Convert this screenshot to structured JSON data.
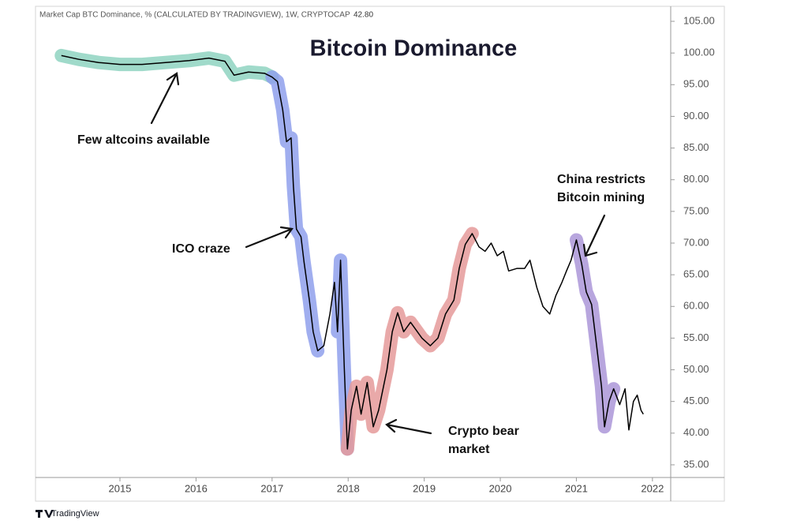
{
  "chart_data": {
    "type": "line",
    "header": "Market Cap BTC Dominance, % (CALCULATED BY TRADINGVIEW), 1W, CRYPTOCAP",
    "last_value": {
      "value": 42.8,
      "label": "42.80"
    },
    "title": "Bitcoin Dominance",
    "brand": "TradingView",
    "xlim": [
      2013.89,
      2022.24
    ],
    "xticks": [
      2015,
      2016,
      2017,
      2018,
      2019,
      2020,
      2021,
      2022
    ],
    "ylim": [
      33.0,
      107.37
    ],
    "yticks": [
      {
        "value": 35,
        "label": "35.00"
      },
      {
        "value": 40,
        "label": "40.00"
      },
      {
        "value": 45,
        "label": "45.00"
      },
      {
        "value": 50,
        "label": "50.00"
      },
      {
        "value": 55,
        "label": "55.00"
      },
      {
        "value": 60,
        "label": "60.00"
      },
      {
        "value": 65,
        "label": "65.00"
      },
      {
        "value": 70,
        "label": "70.00"
      },
      {
        "value": 75,
        "label": "75.00"
      },
      {
        "value": 80,
        "label": "80.00"
      },
      {
        "value": 85,
        "label": "85.00"
      },
      {
        "value": 90,
        "label": "90.00"
      },
      {
        "value": 95,
        "label": "95.00"
      },
      {
        "value": 100,
        "label": "100.00"
      },
      {
        "value": 105,
        "label": "105.00"
      }
    ],
    "x": [
      2014.23,
      2014.46,
      2014.72,
      2015.0,
      2015.29,
      2015.6,
      2015.91,
      2016.17,
      2016.38,
      2016.5,
      2016.69,
      2016.9,
      2017.0,
      2017.07,
      2017.14,
      2017.19,
      2017.25,
      2017.28,
      2017.32,
      2017.38,
      2017.42,
      2017.49,
      2017.54,
      2017.6,
      2017.68,
      2017.76,
      2017.82,
      2017.86,
      2017.9,
      2017.95,
      2017.99,
      2018.04,
      2018.11,
      2018.17,
      2018.25,
      2018.33,
      2018.4,
      2018.51,
      2018.58,
      2018.65,
      2018.73,
      2018.82,
      2018.97,
      2019.08,
      2019.18,
      2019.28,
      2019.39,
      2019.46,
      2019.54,
      2019.63,
      2019.72,
      2019.8,
      2019.88,
      2019.96,
      2020.04,
      2020.11,
      2020.22,
      2020.32,
      2020.39,
      2020.48,
      2020.56,
      2020.65,
      2020.73,
      2020.81,
      2020.87,
      2020.93,
      2021.0,
      2021.07,
      2021.13,
      2021.2,
      2021.27,
      2021.33,
      2021.37,
      2021.43,
      2021.49,
      2021.57,
      2021.64,
      2021.69,
      2021.75,
      2021.8,
      2021.85,
      2021.88
    ],
    "series": [
      {
        "name": "BTC Dominance",
        "color": "#000000",
        "values": [
          99.6,
          99.0,
          98.5,
          98.2,
          98.2,
          98.5,
          98.8,
          99.2,
          98.7,
          96.5,
          97.0,
          96.8,
          96.2,
          95.5,
          91.0,
          86.0,
          86.6,
          79.0,
          72.2,
          71.0,
          67.0,
          61.0,
          56.0,
          53.0,
          53.8,
          58.8,
          63.8,
          56.0,
          67.3,
          50.0,
          37.5,
          43.6,
          47.4,
          43.0,
          48.0,
          41.0,
          43.6,
          50.0,
          56.0,
          59.0,
          56.0,
          57.5,
          55.0,
          53.8,
          55.0,
          58.8,
          61.0,
          66.0,
          69.8,
          71.5,
          69.4,
          68.7,
          70.0,
          68.0,
          68.7,
          65.6,
          66.0,
          66.0,
          67.3,
          63.0,
          60.0,
          58.8,
          61.7,
          63.8,
          65.6,
          67.3,
          70.5,
          66.7,
          62.3,
          60.3,
          53.4,
          47.4,
          41.0,
          45.0,
          47.0,
          44.5,
          47.0,
          40.5,
          45.0,
          46.0,
          43.6,
          43.0
        ]
      }
    ],
    "highlights": [
      {
        "start": 2014.23,
        "end": 2017.0,
        "color": "#8fd3c1"
      },
      {
        "start": 2017.0,
        "end": 2017.6,
        "color": "#8fa0ec"
      },
      {
        "start": 2017.86,
        "end": 2017.99,
        "color": "#8fa0ec"
      },
      {
        "start": 2017.99,
        "end": 2019.63,
        "color": "#e59a9a"
      },
      {
        "start": 2021.0,
        "end": 2021.49,
        "color": "#ab96d8"
      }
    ],
    "annotations": [
      {
        "lines": [
          "Few altcoins available"
        ]
      },
      {
        "lines": [
          "ICO craze"
        ]
      },
      {
        "lines": [
          "China restricts",
          "Bitcoin mining"
        ]
      },
      {
        "lines": [
          "Crypto bear",
          "market"
        ]
      }
    ]
  }
}
